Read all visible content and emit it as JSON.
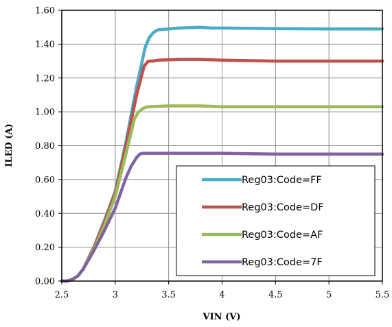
{
  "chart_data": {
    "type": "line",
    "xlabel": "VIN (V)",
    "ylabel": "ILED (A)",
    "xlim": [
      2.5,
      5.5
    ],
    "ylim": [
      0.0,
      1.6
    ],
    "xticks": [
      "2.5",
      "3",
      "3.5",
      "4",
      "4.5",
      "5",
      "5.5"
    ],
    "yticks": [
      "0.00",
      "0.20",
      "0.40",
      "0.60",
      "0.80",
      "1.00",
      "1.20",
      "1.40",
      "1.60"
    ],
    "grid": true,
    "legend_position": "bottom-right",
    "series": [
      {
        "name": "Reg03:Code=FF",
        "color": "#4bacc6",
        "x": [
          2.5,
          2.55,
          2.6,
          2.65,
          2.7,
          2.8,
          2.9,
          3.0,
          3.1,
          3.2,
          3.28,
          3.32,
          3.36,
          3.4,
          3.5,
          3.6,
          3.8,
          3.9,
          4.0,
          4.5,
          5.0,
          5.5
        ],
        "y": [
          0.0,
          0.0,
          0.01,
          0.03,
          0.07,
          0.2,
          0.36,
          0.53,
          0.82,
          1.15,
          1.38,
          1.44,
          1.47,
          1.485,
          1.49,
          1.495,
          1.5,
          1.495,
          1.495,
          1.492,
          1.49,
          1.49
        ]
      },
      {
        "name": "Reg03:Code=DF",
        "color": "#c0504d",
        "x": [
          2.5,
          2.55,
          2.6,
          2.65,
          2.7,
          2.8,
          2.9,
          3.0,
          3.1,
          3.2,
          3.27,
          3.31,
          3.35,
          3.4,
          3.6,
          3.8,
          4.0,
          4.5,
          5.0,
          5.5
        ],
        "y": [
          0.0,
          0.0,
          0.01,
          0.03,
          0.07,
          0.2,
          0.35,
          0.52,
          0.8,
          1.1,
          1.27,
          1.3,
          1.3,
          1.305,
          1.31,
          1.31,
          1.305,
          1.3,
          1.3,
          1.3
        ]
      },
      {
        "name": "Reg03:Code=AF",
        "color": "#9bbb59",
        "x": [
          2.5,
          2.55,
          2.6,
          2.65,
          2.7,
          2.8,
          2.9,
          3.0,
          3.1,
          3.18,
          3.22,
          3.26,
          3.3,
          3.5,
          3.8,
          4.0,
          4.5,
          5.0,
          5.5
        ],
        "y": [
          0.0,
          0.0,
          0.01,
          0.03,
          0.07,
          0.19,
          0.33,
          0.5,
          0.75,
          0.96,
          1.0,
          1.02,
          1.03,
          1.035,
          1.035,
          1.03,
          1.03,
          1.03,
          1.03
        ]
      },
      {
        "name": "Reg03:Code=7F",
        "color": "#8064a2",
        "x": [
          2.5,
          2.55,
          2.6,
          2.65,
          2.7,
          2.8,
          2.9,
          3.0,
          3.05,
          3.1,
          3.15,
          3.2,
          3.23,
          3.26,
          3.3,
          3.5,
          4.0,
          4.5,
          5.0,
          5.5
        ],
        "y": [
          0.0,
          0.0,
          0.01,
          0.03,
          0.07,
          0.18,
          0.3,
          0.43,
          0.52,
          0.61,
          0.68,
          0.73,
          0.75,
          0.755,
          0.755,
          0.755,
          0.755,
          0.75,
          0.75,
          0.75
        ]
      }
    ]
  }
}
